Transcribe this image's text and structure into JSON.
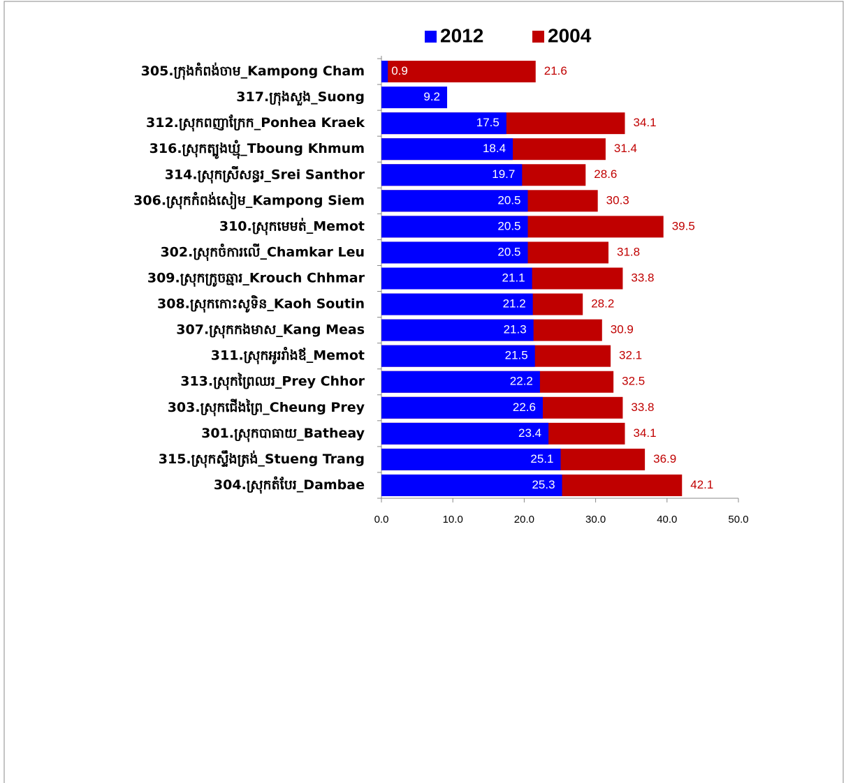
{
  "chart_data": {
    "type": "bar",
    "orientation": "horizontal",
    "overlap": true,
    "categories": [
      "305.ក្រុងកំពង់ចាម_Kampong Cham",
      "317.ក្រុងសួង_Suong",
      "312.ស្រុកពញាក្រែក_Ponhea Kraek",
      "316.ស្រុកត្បូងឃ្មុំ_Tboung Khmum",
      "314.ស្រុកស្រីសន្ធរ_Srei Santhor",
      "306.ស្រុកកំពង់សៀម_Kampong Siem",
      "310.ស្រុកមេមត់_Memot",
      "302.ស្រុកចំការលើ_Chamkar Leu",
      "309.ស្រុកក្រូចឆ្មារ_Krouch Chhmar",
      "308.ស្រុកកោះសូទិន_Kaoh Soutin",
      "307.ស្រុកកងមាស_Kang Meas",
      "311.ស្រុកអូររាំងឪ_Memot",
      "313.ស្រុកព្រៃឈរ_Prey Chhor",
      "303.ស្រុកជើងព្រៃ_Cheung Prey",
      "301.ស្រុកបាធាយ_Batheay",
      "315.ស្រុកស្ទឹងត្រង់_Stueng Trang",
      "304.ស្រុកតំបែរ_Dambae"
    ],
    "series": [
      {
        "name": "2004",
        "color": "#c00000",
        "values": [
          21.6,
          null,
          34.1,
          31.4,
          28.6,
          30.3,
          39.5,
          31.8,
          33.8,
          28.2,
          30.9,
          32.1,
          32.5,
          33.8,
          34.1,
          36.9,
          42.1
        ]
      },
      {
        "name": "2012",
        "color": "#0000ff",
        "values": [
          0.9,
          9.2,
          17.5,
          18.4,
          19.7,
          20.5,
          20.5,
          20.5,
          21.1,
          21.2,
          21.3,
          21.5,
          22.2,
          22.6,
          23.4,
          25.1,
          25.3
        ]
      }
    ],
    "xlim": [
      0,
      50
    ],
    "xticks": [
      {
        "value": 0,
        "label": "0.0"
      },
      {
        "value": 10,
        "label": "10.0"
      },
      {
        "value": 20,
        "label": "20.0"
      },
      {
        "value": 30,
        "label": "30.0"
      },
      {
        "value": 40,
        "label": "40.0"
      },
      {
        "value": 50,
        "label": "50.0"
      }
    ],
    "legend": "top"
  }
}
